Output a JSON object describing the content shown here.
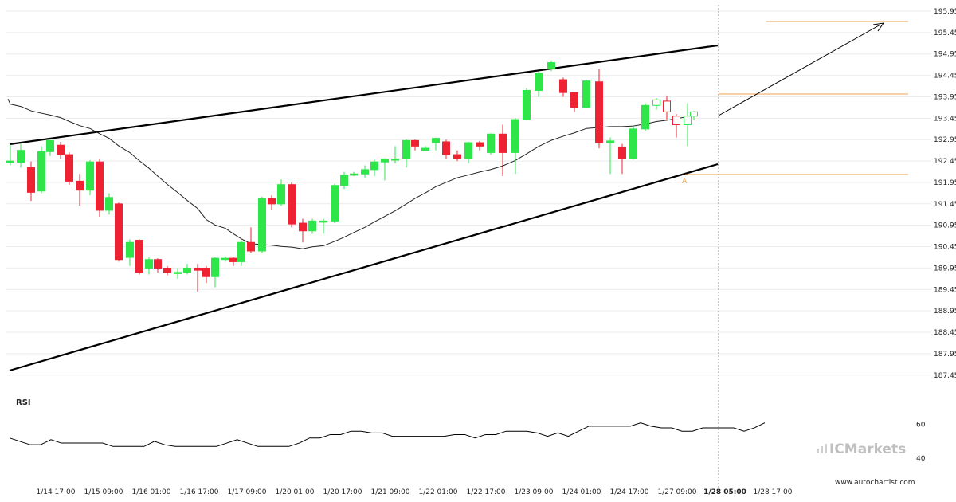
{
  "chart_data": [
    {
      "type": "candlestick",
      "title": "",
      "ylim": [
        187.0,
        196.1
      ],
      "y_ticks": [
        "195.9512",
        "195.4512",
        "194.9512",
        "194.4512",
        "193.9512",
        "193.4512",
        "192.9512",
        "192.4512",
        "191.9512",
        "191.4512",
        "190.9512",
        "190.4512",
        "189.9512",
        "189.4512",
        "188.9512",
        "188.4512",
        "187.9512",
        "187.4512"
      ],
      "x_ticks": [
        {
          "label": "1/14 17:00",
          "i": 4
        },
        {
          "label": "1/15 09:00",
          "i": 9
        },
        {
          "label": "1/16 01:00",
          "i": 14
        },
        {
          "label": "1/16 17:00",
          "i": 19
        },
        {
          "label": "1/17 09:00",
          "i": 24
        },
        {
          "label": "1/20 01:00",
          "i": 29
        },
        {
          "label": "1/20 17:00",
          "i": 34
        },
        {
          "label": "1/21 09:00",
          "i": 39
        },
        {
          "label": "1/22 01:00",
          "i": 44
        },
        {
          "label": "1/22 17:00",
          "i": 49
        },
        {
          "label": "1/23 09:00",
          "i": 54
        },
        {
          "label": "1/24 01:00",
          "i": 59
        },
        {
          "label": "1/24 17:00",
          "i": 64
        },
        {
          "label": "1/27 09:00",
          "i": 69
        },
        {
          "label": "1/28 05:00",
          "i": 74,
          "bold": true
        },
        {
          "label": "1/28 17:00",
          "i": 79
        }
      ],
      "candles": [
        [
          192.42,
          192.45,
          192.35,
          192.83
        ],
        [
          192.42,
          192.7,
          192.3,
          192.85
        ],
        [
          192.3,
          191.72,
          191.52,
          192.44
        ],
        [
          191.75,
          192.67,
          191.7,
          192.8
        ],
        [
          192.67,
          192.93,
          192.57,
          192.95
        ],
        [
          192.82,
          192.6,
          192.5,
          192.9
        ],
        [
          192.6,
          191.98,
          191.9,
          192.65
        ],
        [
          191.98,
          191.77,
          191.4,
          192.15
        ],
        [
          191.77,
          192.43,
          191.65,
          192.47
        ],
        [
          192.43,
          191.3,
          191.15,
          192.5
        ],
        [
          191.3,
          191.6,
          191.2,
          191.7
        ],
        [
          191.45,
          190.15,
          190.1,
          191.48
        ],
        [
          190.2,
          190.55,
          190.0,
          190.62
        ],
        [
          190.6,
          189.85,
          189.8,
          190.62
        ],
        [
          189.95,
          190.15,
          189.8,
          190.2
        ],
        [
          190.15,
          189.95,
          189.85,
          190.18
        ],
        [
          189.95,
          189.85,
          189.78,
          190.0
        ],
        [
          189.85,
          189.85,
          189.7,
          189.95
        ],
        [
          189.85,
          189.95,
          189.8,
          190.05
        ],
        [
          189.95,
          189.9,
          189.4,
          190.05
        ],
        [
          189.95,
          189.75,
          189.6,
          190.0
        ],
        [
          189.75,
          190.18,
          189.5,
          190.2
        ],
        [
          190.18,
          190.18,
          190.1,
          190.22
        ],
        [
          190.18,
          190.1,
          190.0,
          190.2
        ],
        [
          190.1,
          190.55,
          190.0,
          190.6
        ],
        [
          190.55,
          190.35,
          190.3,
          190.9
        ],
        [
          190.35,
          191.58,
          190.3,
          191.62
        ],
        [
          191.58,
          191.45,
          191.3,
          191.65
        ],
        [
          191.45,
          191.9,
          191.4,
          192.02
        ],
        [
          191.9,
          190.98,
          190.9,
          191.95
        ],
        [
          191.0,
          190.82,
          190.55,
          191.1
        ],
        [
          190.82,
          191.05,
          190.75,
          191.1
        ],
        [
          191.05,
          191.05,
          190.75,
          191.1
        ],
        [
          191.05,
          191.88,
          191.0,
          191.92
        ],
        [
          191.88,
          192.12,
          191.8,
          192.2
        ],
        [
          192.12,
          192.15,
          192.1,
          192.2
        ],
        [
          192.15,
          192.25,
          192.05,
          192.35
        ],
        [
          192.25,
          192.43,
          192.1,
          192.48
        ],
        [
          192.43,
          192.5,
          192.0,
          192.52
        ],
        [
          192.5,
          192.5,
          192.4,
          192.8
        ],
        [
          192.5,
          192.93,
          192.3,
          192.96
        ],
        [
          192.93,
          192.8,
          192.7,
          192.95
        ],
        [
          192.7,
          192.75,
          192.7,
          192.8
        ],
        [
          192.88,
          192.98,
          192.7,
          193.0
        ],
        [
          192.9,
          192.6,
          192.5,
          192.95
        ],
        [
          192.6,
          192.5,
          192.45,
          192.7
        ],
        [
          192.5,
          192.88,
          192.4,
          192.9
        ],
        [
          192.88,
          192.8,
          192.7,
          192.92
        ],
        [
          192.65,
          193.08,
          192.6,
          193.1
        ],
        [
          193.08,
          192.65,
          192.1,
          193.3
        ],
        [
          192.65,
          193.42,
          192.15,
          193.45
        ],
        [
          193.42,
          194.1,
          193.4,
          194.15
        ],
        [
          194.1,
          194.5,
          193.95,
          194.55
        ],
        [
          194.6,
          194.75,
          194.55,
          194.8
        ],
        [
          194.35,
          194.05,
          193.95,
          194.4
        ],
        [
          194.05,
          193.7,
          193.6,
          194.06
        ],
        [
          193.7,
          194.32,
          193.68,
          194.35
        ],
        [
          194.3,
          192.88,
          192.75,
          194.6
        ],
        [
          192.88,
          192.92,
          192.15,
          193.0
        ],
        [
          192.78,
          192.5,
          192.15,
          192.85
        ],
        [
          192.5,
          193.2,
          192.48,
          193.25
        ],
        [
          193.2,
          193.75,
          193.15,
          193.8
        ],
        [
          193.75,
          193.88,
          193.65,
          193.92
        ],
        [
          193.85,
          193.6,
          193.4,
          193.98
        ],
        [
          193.5,
          193.3,
          193.0,
          193.55
        ],
        [
          193.3,
          193.5,
          192.8,
          193.8
        ],
        [
          193.5,
          193.6,
          193.4,
          193.62
        ]
      ],
      "candle_x": [
        13,
        26,
        39,
        52,
        63,
        76,
        87,
        100,
        113,
        125,
        137,
        149,
        163,
        175,
        187,
        198,
        210,
        223,
        235,
        248,
        259,
        270,
        283,
        293,
        303,
        315,
        329,
        341,
        353,
        366,
        380,
        392,
        406,
        420,
        432,
        444,
        458,
        470,
        483,
        496,
        510,
        521,
        534,
        547,
        560,
        574,
        588,
        602,
        616,
        631,
        647,
        661,
        676,
        692,
        707,
        721,
        736,
        752,
        766,
        781,
        795,
        810,
        824,
        837,
        849,
        863,
        871
      ]
    },
    {
      "type": "candlestick",
      "title": "",
      "ylim": [
        187.0,
        196.1
      ],
      "candles": [
        [
          192.42,
          192.45,
          192.35,
          192.83
        ],
        [
          192.42,
          192.7,
          192.3,
          192.85
        ],
        [
          192.3,
          191.72,
          191.52,
          192.44
        ],
        [
          191.75,
          192.67,
          191.7,
          192.8
        ],
        [
          192.67,
          192.93,
          192.57,
          192.95
        ],
        [
          192.82,
          192.6,
          192.5,
          192.9
        ],
        [
          192.6,
          191.98,
          191.9,
          192.65
        ],
        [
          191.98,
          191.77,
          191.4,
          192.15
        ],
        [
          191.77,
          192.43,
          191.65,
          192.47
        ],
        [
          192.43,
          191.3,
          191.15,
          192.5
        ],
        [
          191.3,
          191.6,
          191.2,
          191.7
        ],
        [
          191.45,
          190.15,
          190.1,
          191.48
        ],
        [
          190.2,
          190.55,
          190.0,
          190.62
        ],
        [
          190.6,
          189.85,
          189.8,
          190.62
        ],
        [
          189.95,
          190.15,
          189.8,
          190.2
        ],
        [
          190.15,
          189.95,
          189.85,
          190.18
        ],
        [
          189.95,
          189.85,
          189.78,
          190.0
        ],
        [
          189.85,
          189.85,
          189.7,
          189.95
        ],
        [
          189.85,
          189.95,
          189.8,
          190.05
        ],
        [
          189.95,
          189.9,
          189.4,
          190.05
        ],
        [
          189.95,
          189.75,
          189.6,
          190.0
        ],
        [
          189.75,
          190.18,
          189.5,
          190.2
        ],
        [
          190.18,
          190.18,
          190.1,
          190.22
        ],
        [
          190.18,
          190.1,
          190.0,
          190.2
        ],
        [
          190.1,
          190.55,
          190.0,
          190.6
        ],
        [
          190.55,
          190.35,
          190.3,
          190.9
        ],
        [
          190.35,
          191.58,
          190.3,
          191.62
        ],
        [
          191.58,
          191.45,
          191.3,
          191.65
        ],
        [
          191.45,
          191.9,
          191.4,
          192.02
        ],
        [
          191.9,
          190.98,
          190.9,
          191.95
        ],
        [
          191.0,
          190.82,
          190.55,
          191.1
        ],
        [
          190.82,
          191.05,
          190.75,
          191.1
        ],
        [
          191.05,
          191.05,
          190.75,
          191.1
        ],
        [
          191.05,
          191.88,
          191.0,
          191.92
        ],
        [
          191.88,
          192.12,
          191.8,
          192.2
        ],
        [
          192.12,
          192.15,
          192.1,
          192.2
        ],
        [
          192.15,
          192.25,
          192.05,
          192.35
        ],
        [
          192.25,
          192.43,
          192.1,
          192.48
        ],
        [
          192.43,
          192.5,
          192.0,
          192.52
        ],
        [
          192.5,
          192.5,
          192.4,
          192.8
        ],
        [
          192.5,
          192.93,
          192.3,
          192.96
        ],
        [
          192.93,
          192.8,
          192.7,
          192.95
        ],
        [
          192.7,
          192.75,
          192.7,
          192.8
        ],
        [
          192.88,
          192.98,
          192.7,
          193.0
        ],
        [
          192.9,
          192.6,
          192.5,
          192.95
        ],
        [
          192.6,
          192.5,
          192.45,
          192.7
        ],
        [
          192.5,
          192.88,
          192.4,
          192.9
        ],
        [
          192.88,
          192.8,
          192.7,
          192.92
        ],
        [
          192.65,
          193.08,
          192.6,
          193.1
        ],
        [
          193.08,
          192.65,
          192.1,
          193.3
        ],
        [
          192.65,
          193.42,
          192.15,
          193.45
        ],
        [
          193.42,
          194.1,
          193.4,
          194.15
        ],
        [
          194.1,
          194.5,
          193.95,
          194.55
        ],
        [
          194.6,
          194.75,
          194.55,
          194.8
        ],
        [
          194.35,
          194.05,
          193.95,
          194.4
        ],
        [
          194.05,
          193.7,
          193.6,
          194.06
        ],
        [
          193.7,
          194.32,
          193.68,
          194.35
        ],
        [
          194.3,
          192.88,
          192.75,
          194.6
        ],
        [
          192.88,
          192.92,
          192.15,
          193.0
        ],
        [
          192.78,
          192.5,
          192.15,
          192.85
        ],
        [
          192.5,
          193.2,
          192.48,
          193.25
        ],
        [
          193.2,
          193.75,
          193.15,
          193.8
        ],
        [
          193.75,
          193.88,
          193.65,
          193.92
        ],
        [
          193.85,
          193.6,
          193.4,
          193.98
        ],
        [
          193.5,
          193.3,
          193.0,
          193.55
        ],
        [
          193.3,
          193.5,
          192.8,
          193.8
        ],
        [
          193.5,
          193.6,
          193.4,
          193.62
        ]
      ]
    }
  ],
  "rsi": {
    "label": "RSI",
    "ticks": [
      "60",
      "40"
    ],
    "ylim": [
      33,
      66
    ],
    "values": [
      52,
      50,
      48,
      48,
      51,
      49,
      49,
      49,
      49,
      49,
      47,
      47,
      47,
      47,
      50,
      48,
      47,
      47,
      47,
      47,
      47,
      49,
      51,
      49,
      47,
      47,
      47,
      47,
      49,
      52,
      52,
      54,
      54,
      56,
      56,
      55,
      55,
      53,
      53,
      53,
      53,
      53,
      53,
      54,
      54,
      52,
      54,
      54,
      56,
      56,
      56,
      55,
      53,
      55,
      53,
      56,
      59,
      59,
      59,
      59,
      59,
      61,
      59,
      58,
      58,
      56,
      56,
      58,
      58,
      58,
      58,
      56,
      58,
      61
    ]
  },
  "branding": {
    "brand_name": "ICMarkets",
    "site": "www.autochartist.com",
    "pattern_point_label": "A"
  },
  "colors": {
    "bull": "#2ee64a",
    "bear": "#ee2233",
    "outline_bull": "#2ee64a",
    "outline_bear": "#ee2233",
    "level": "#f0a050",
    "trend": "#000000",
    "ma": "#222222",
    "grid": "#ececec"
  }
}
